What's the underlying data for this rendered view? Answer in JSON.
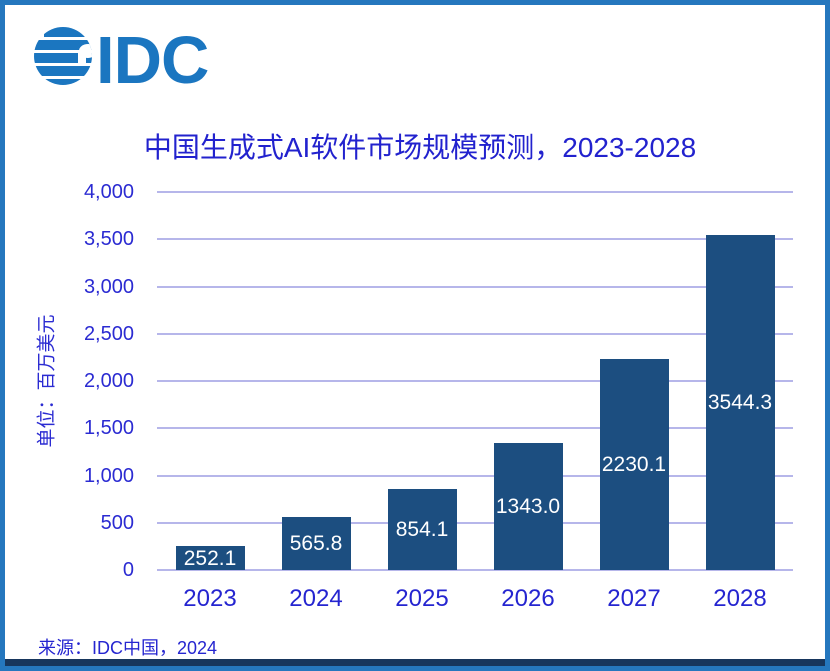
{
  "logo": {
    "name": "IDC",
    "color": "#1B76C0"
  },
  "chart_data": {
    "type": "bar",
    "title": "中国生成式AI软件市场规模预测，2023-2028",
    "categories": [
      "2023",
      "2024",
      "2025",
      "2026",
      "2027",
      "2028"
    ],
    "values": [
      252.1,
      565.8,
      854.1,
      1343.0,
      2230.1,
      3544.3
    ],
    "bar_labels": [
      "252.1",
      "565.8",
      "854.1",
      "1343.0",
      "2230.1",
      "3544.3"
    ],
    "ylabel": "单位：百万美元",
    "xlabel": "",
    "ylim": [
      0,
      4000
    ],
    "ytick_step": 500,
    "yticks_top_to_bottom": [
      "4,000",
      "3,500",
      "3,000",
      "2,500",
      "2,000",
      "1,500",
      "1,000",
      "500",
      "0"
    ],
    "grid": true,
    "legend": "none",
    "bar_color": "#1C4E80",
    "grid_color": "#B6B6EA",
    "title_color": "#2222CE",
    "tick_color": "#2B2BD2",
    "value_label_color": "#FFFFFF"
  },
  "source": "来源：IDC中国，2024",
  "frame": {
    "border_color": "#2577BE",
    "footer_stripe_color": "#17365D"
  }
}
